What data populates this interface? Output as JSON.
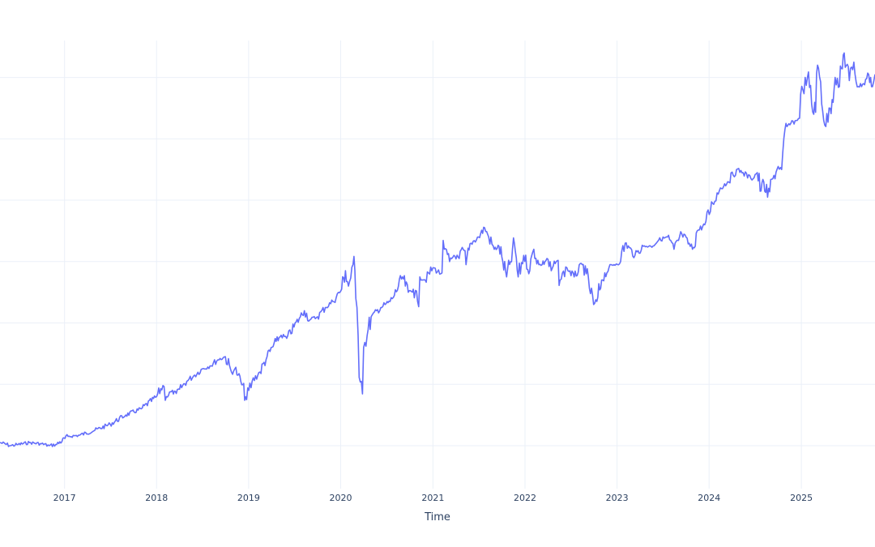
{
  "chart_data": {
    "type": "line",
    "title": "",
    "xlabel": "Time",
    "ylabel": "",
    "grid": true,
    "line_color": "#636efa",
    "grid_color": "#ebf0f8",
    "text_color": "#2a3f5f",
    "x_tick_labels": [
      "2017",
      "2018",
      "2019",
      "2020",
      "2021",
      "2022",
      "2023",
      "2024",
      "2025"
    ],
    "xlim": [
      "2016-04-20",
      "2025-10-20"
    ],
    "ylim": [
      0.3,
      7.8
    ],
    "y_grid": [
      1,
      2,
      3,
      4,
      5,
      6,
      7
    ],
    "series": [
      {
        "x": [
          "2016-04-20",
          "2016-06-01",
          "2016-07-01",
          "2016-08-15",
          "2016-10-01",
          "2016-11-01",
          "2016-12-01",
          "2017-01-15",
          "2017-03-01",
          "2017-05-01",
          "2017-07-01",
          "2017-09-01",
          "2017-11-01",
          "2018-01-01",
          "2018-01-26",
          "2018-02-09",
          "2018-03-01",
          "2018-03-20",
          "2018-04-02",
          "2018-05-01",
          "2018-06-01",
          "2018-07-01",
          "2018-08-01",
          "2018-09-01",
          "2018-10-01",
          "2018-10-25",
          "2018-11-07",
          "2018-11-20",
          "2018-12-01",
          "2018-12-24",
          "2019-01-15",
          "2019-02-15",
          "2019-03-15",
          "2019-04-20",
          "2019-05-10",
          "2019-06-01",
          "2019-07-25",
          "2019-08-10",
          "2019-09-01",
          "2019-10-01",
          "2019-11-01",
          "2019-12-01",
          "2020-01-05",
          "2020-01-20",
          "2020-02-01",
          "2020-02-19",
          "2020-03-01",
          "2020-03-10",
          "2020-03-23",
          "2020-04-01",
          "2020-04-15",
          "2020-05-01",
          "2020-06-08",
          "2020-06-25",
          "2020-07-15",
          "2020-08-01",
          "2020-09-02",
          "2020-09-25",
          "2020-10-15",
          "2020-11-01",
          "2020-11-10",
          "2020-12-01",
          "2021-01-01",
          "2021-02-01",
          "2021-02-15",
          "2021-03-08",
          "2021-03-25",
          "2021-04-15",
          "2021-05-01",
          "2021-05-12",
          "2021-06-01",
          "2021-07-01",
          "2021-07-25",
          "2021-08-10",
          "2021-09-01",
          "2021-09-20",
          "2021-10-05",
          "2021-10-20",
          "2021-11-05",
          "2021-11-20",
          "2021-12-05",
          "2021-12-27",
          "2022-01-20",
          "2022-02-05",
          "2022-02-25",
          "2022-03-10",
          "2022-03-29",
          "2022-04-15",
          "2022-05-05",
          "2022-05-20",
          "2022-06-16",
          "2022-07-15",
          "2022-08-16",
          "2022-09-01",
          "2022-09-30",
          "2022-10-13",
          "2022-11-01",
          "2022-11-30",
          "2022-12-20",
          "2023-01-15",
          "2023-02-02",
          "2023-03-13",
          "2023-04-15",
          "2023-05-15",
          "2023-06-15",
          "2023-07-20",
          "2023-08-15",
          "2023-09-15",
          "2023-10-27",
          "2023-11-15",
          "2023-12-15",
          "2024-01-15",
          "2024-02-15",
          "2024-03-15",
          "2024-04-19",
          "2024-05-15",
          "2024-06-15",
          "2024-07-10",
          "2024-07-25",
          "2024-08-05",
          "2024-08-20",
          "2024-09-10",
          "2024-10-01",
          "2024-10-15",
          "2024-11-05",
          "2024-11-20",
          "2024-12-16",
          "2025-01-07",
          "2025-01-25",
          "2025-02-19",
          "2025-03-10",
          "2025-04-08",
          "2025-04-25",
          "2025-05-15",
          "2025-06-01",
          "2025-06-20",
          "2025-07-10",
          "2025-07-28",
          "2025-08-15",
          "2025-09-05",
          "2025-09-25",
          "2025-10-10",
          "2025-10-20"
        ],
        "y": [
          1.05,
          1.0,
          1.02,
          1.05,
          1.03,
          1.0,
          1.02,
          1.15,
          1.17,
          1.25,
          1.35,
          1.5,
          1.6,
          1.8,
          1.98,
          1.8,
          1.88,
          1.85,
          1.92,
          2.05,
          2.15,
          2.25,
          2.3,
          2.4,
          2.45,
          2.2,
          2.25,
          2.15,
          2.05,
          1.75,
          2.05,
          2.2,
          2.45,
          2.7,
          2.8,
          2.75,
          3.1,
          3.2,
          3.05,
          3.1,
          3.25,
          3.35,
          3.55,
          3.85,
          3.6,
          3.95,
          3.4,
          2.8,
          2.05,
          2.6,
          2.8,
          3.1,
          3.25,
          3.3,
          3.35,
          3.45,
          3.75,
          3.5,
          3.55,
          3.35,
          3.75,
          3.7,
          3.9,
          3.8,
          4.2,
          4.0,
          4.1,
          4.05,
          4.2,
          3.95,
          4.3,
          4.4,
          4.55,
          4.4,
          4.2,
          4.25,
          4.0,
          3.75,
          4.0,
          4.3,
          3.75,
          4.1,
          3.85,
          4.2,
          3.95,
          3.95,
          4.05,
          3.85,
          4.0,
          3.7,
          3.9,
          3.75,
          3.95,
          3.8,
          3.3,
          3.35,
          3.7,
          3.9,
          3.95,
          4.0,
          4.3,
          4.1,
          4.25,
          4.25,
          4.35,
          4.4,
          4.2,
          4.45,
          4.2,
          4.5,
          4.6,
          4.95,
          5.2,
          5.3,
          5.5,
          5.45,
          5.35,
          5.45,
          5.15,
          5.3,
          5.05,
          5.35,
          5.55,
          5.5,
          6.2,
          6.25,
          6.3,
          6.8,
          7.0,
          6.4,
          7.15,
          6.2,
          6.5,
          7.0,
          6.85,
          7.4,
          6.95,
          7.25,
          6.85,
          6.9,
          7.05,
          6.85,
          7.05
        ]
      }
    ]
  }
}
